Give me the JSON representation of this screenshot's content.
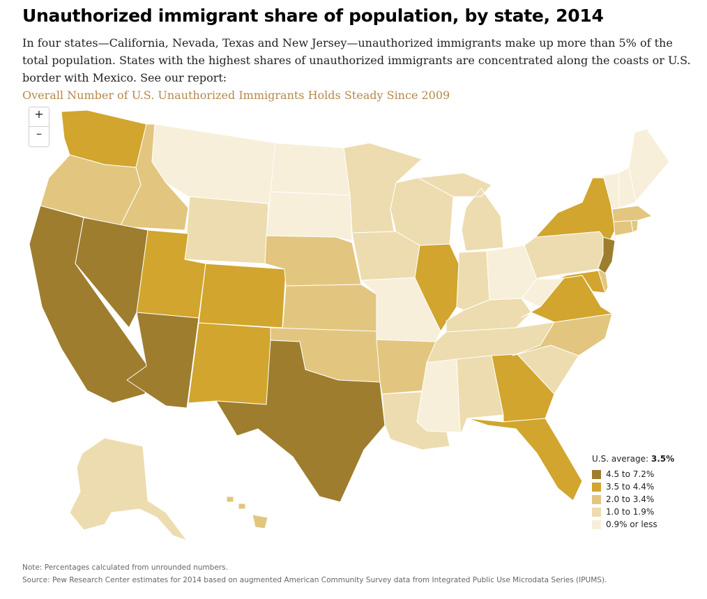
{
  "title": "Unauthorized immigrant share of population, by state, 2014",
  "subtitle_text": "In four states—California, Nevada, Texas and New Jersey—unauthorized immigrants make up more than 5% of the total population. States with the highest shares of unauthorized immigrants are concentrated along the coasts or U.S. border with Mexico. See our report:",
  "report_link": "Overall Number of U.S. Unauthorized Immigrants Holds Steady Since 2009",
  "zoom": {
    "in_label": "+",
    "out_label": "–"
  },
  "legend": {
    "average_label": "U.S. average:",
    "average_value": "3.5%",
    "bins": [
      {
        "label": "4.5 to 7.2%",
        "color": "#9e7d2f"
      },
      {
        "label": "3.5 to 4.4%",
        "color": "#d1a52e"
      },
      {
        "label": "2.0 to 3.4%",
        "color": "#e2c67f"
      },
      {
        "label": "1.0 to 1.9%",
        "color": "#eddcaf"
      },
      {
        "label": "0.9% or less",
        "color": "#f7efd9"
      }
    ]
  },
  "chart_data": {
    "type": "choropleth",
    "title": "Unauthorized immigrant share of population, by state, 2014",
    "us_average": "3.5%",
    "state_bins": {
      "CA": 0,
      "NV": 0,
      "TX": 0,
      "NJ": 0,
      "AZ": 0,
      "WA": 1,
      "UT": 1,
      "CO": 1,
      "NM": 1,
      "IL": 1,
      "NY": 1,
      "GA": 1,
      "FL": 1,
      "VA": 1,
      "MD": 1,
      "OR": 2,
      "ID": 2,
      "NE": 2,
      "KS": 2,
      "OK": 2,
      "AR": 2,
      "NC": 2,
      "CT": 2,
      "MA": 2,
      "RI": 2,
      "DE": 2,
      "HI": 2,
      "WY": 3,
      "MN": 3,
      "IA": 3,
      "WI": 3,
      "MI": 3,
      "IN": 3,
      "KY": 3,
      "TN": 3,
      "AL": 3,
      "LA": 3,
      "SC": 3,
      "PA": 3,
      "AK": 3,
      "MT": 4,
      "ND": 4,
      "SD": 4,
      "MO": 4,
      "MS": 4,
      "OH": 4,
      "WV": 4,
      "VT": 4,
      "NH": 4,
      "ME": 4
    }
  },
  "note": "Note: Percentages calculated from unrounded numbers.",
  "source": "Source: Pew Research Center estimates for 2014 based on augmented American Community Survey data from Integrated Public Use Microdata Series (IPUMS)."
}
